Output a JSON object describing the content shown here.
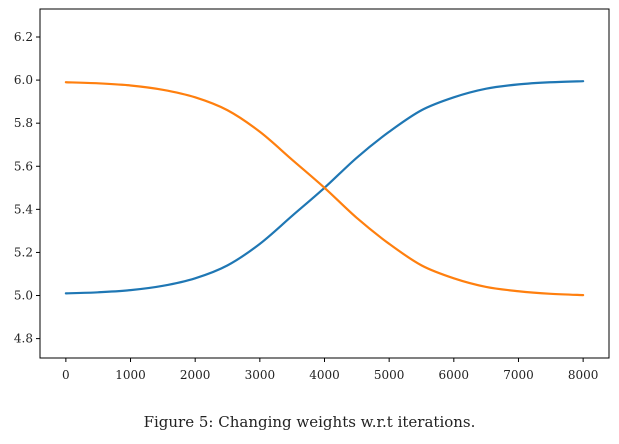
{
  "chart_data": {
    "type": "line",
    "xlim": [
      -400,
      8400
    ],
    "ylim": [
      4.71,
      6.33
    ],
    "x_ticks": [
      0,
      1000,
      2000,
      3000,
      4000,
      5000,
      6000,
      7000,
      8000
    ],
    "x_tick_labels": [
      "0",
      "1000",
      "2000",
      "3000",
      "4000",
      "5000",
      "6000",
      "7000",
      "8000"
    ],
    "y_ticks": [
      4.8,
      5.0,
      5.2,
      5.4,
      5.6,
      5.8,
      6.0,
      6.2
    ],
    "y_tick_labels": [
      "4.8",
      "5.0",
      "5.2",
      "5.4",
      "5.6",
      "5.8",
      "6.0",
      "6.2"
    ],
    "grid": false,
    "legend": "none",
    "series": [
      {
        "color": "#1f77b4",
        "x": [
          0,
          500,
          1000,
          1500,
          2000,
          2500,
          3000,
          3500,
          4000,
          4500,
          5000,
          5500,
          6000,
          6500,
          7000,
          7500,
          8000
        ],
        "values": [
          5.01,
          5.015,
          5.025,
          5.045,
          5.08,
          5.14,
          5.24,
          5.37,
          5.5,
          5.64,
          5.76,
          5.86,
          5.92,
          5.96,
          5.98,
          5.99,
          5.995
        ]
      },
      {
        "color": "#ff7f0e",
        "x": [
          0,
          500,
          1000,
          1500,
          2000,
          2500,
          3000,
          3500,
          4000,
          4500,
          5000,
          5500,
          6000,
          6500,
          7000,
          7500,
          8000
        ],
        "values": [
          5.99,
          5.985,
          5.975,
          5.955,
          5.92,
          5.86,
          5.76,
          5.63,
          5.5,
          5.36,
          5.24,
          5.14,
          5.08,
          5.04,
          5.02,
          5.008,
          5.002
        ]
      }
    ]
  },
  "caption": "Figure 5: Changing weights w.r.t iterations."
}
